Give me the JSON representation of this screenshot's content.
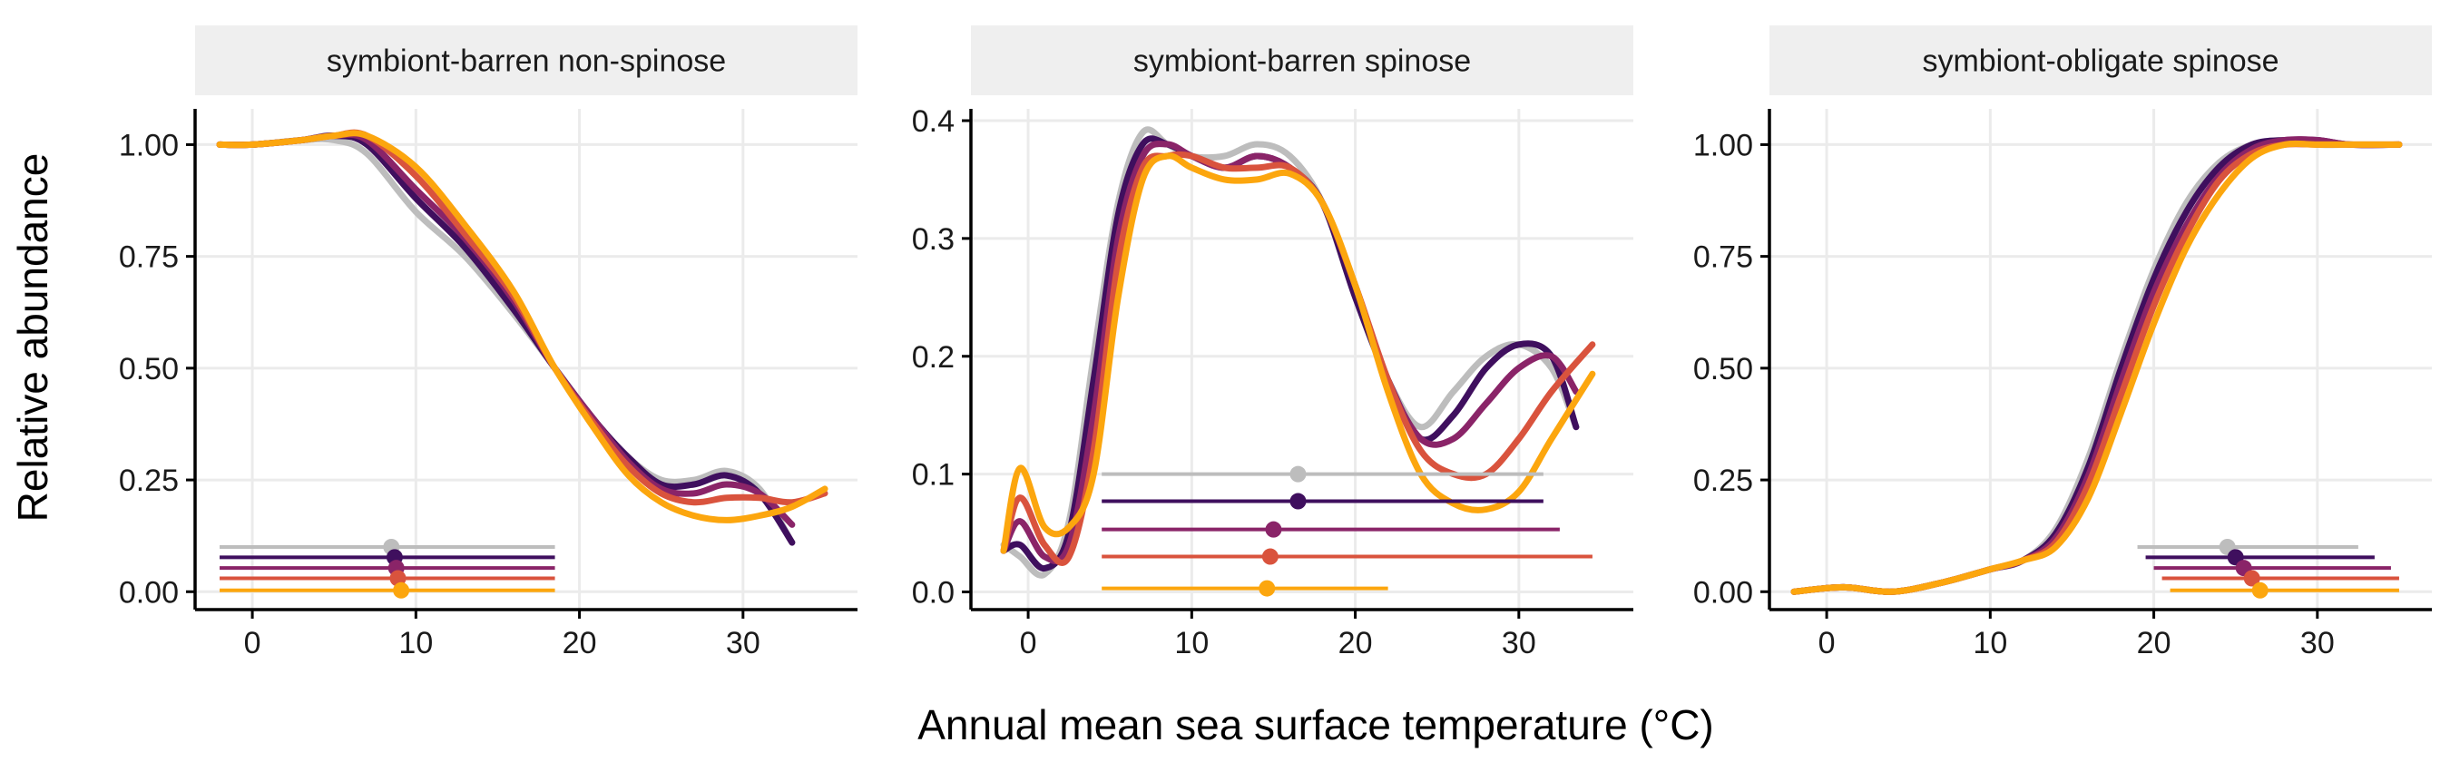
{
  "figure": {
    "ylabel": "Relative abundance",
    "xlabel": "Annual mean sea surface temperature (°C)"
  },
  "colors": {
    "strip_bg": "#efefef",
    "grid": "#ebebeb",
    "axis": "#000000",
    "series": [
      "#bdbdbd",
      "#3f0f5e",
      "#8a2468",
      "#d9533d",
      "#fca60e"
    ]
  },
  "chart_data": [
    {
      "type": "line",
      "title": "symbiont-barren non-spinose",
      "xlim": [
        -3.5,
        37
      ],
      "ylim": [
        -0.04,
        1.08
      ],
      "xticks": [
        0,
        10,
        20,
        30
      ],
      "yticks": [
        0,
        0.25,
        0.5,
        0.75,
        1.0
      ],
      "ytick_labels": [
        "0.00",
        "0.25",
        "0.50",
        "0.75",
        "1.00"
      ],
      "grid": true,
      "legend": "none",
      "series": [
        {
          "x": [
            -2,
            0,
            3,
            5,
            7,
            10,
            13,
            16,
            18.5,
            21,
            23,
            25,
            27,
            29,
            31,
            33
          ],
          "y": [
            1.0,
            1.0,
            1.01,
            1.01,
            0.98,
            0.85,
            0.75,
            0.62,
            0.5,
            0.38,
            0.3,
            0.25,
            0.25,
            0.27,
            0.23,
            0.11
          ]
        },
        {
          "x": [
            -2,
            0,
            3,
            5,
            7,
            10,
            13,
            16,
            18.5,
            21,
            23,
            25,
            27,
            29,
            31,
            33
          ],
          "y": [
            1.0,
            1.0,
            1.01,
            1.02,
            1.0,
            0.88,
            0.77,
            0.63,
            0.5,
            0.38,
            0.3,
            0.24,
            0.24,
            0.26,
            0.22,
            0.11
          ]
        },
        {
          "x": [
            -2,
            0,
            3,
            5,
            7,
            10,
            13,
            16,
            18.5,
            21,
            23,
            25,
            27,
            29,
            31,
            33
          ],
          "y": [
            1.0,
            1.0,
            1.01,
            1.02,
            1.01,
            0.9,
            0.79,
            0.65,
            0.5,
            0.38,
            0.29,
            0.23,
            0.22,
            0.24,
            0.22,
            0.15
          ]
        },
        {
          "x": [
            -2,
            0,
            3,
            5,
            7,
            10,
            13,
            16,
            18.5,
            21,
            23,
            25,
            27,
            29,
            31,
            33,
            35
          ],
          "y": [
            1.0,
            1.0,
            1.01,
            1.02,
            1.02,
            0.93,
            0.8,
            0.66,
            0.5,
            0.37,
            0.28,
            0.22,
            0.2,
            0.21,
            0.21,
            0.2,
            0.22
          ]
        },
        {
          "x": [
            -2,
            0,
            3,
            5,
            7,
            10,
            13,
            16,
            18.5,
            21,
            23,
            25,
            27,
            29,
            31,
            33,
            35
          ],
          "y": [
            1.0,
            1.0,
            1.01,
            1.02,
            1.02,
            0.95,
            0.82,
            0.67,
            0.5,
            0.36,
            0.26,
            0.2,
            0.17,
            0.16,
            0.17,
            0.19,
            0.23
          ]
        }
      ],
      "ranges": [
        {
          "xmin": -2,
          "xmax": 18.5,
          "point": 8.5,
          "y": 0.1
        },
        {
          "xmin": -2,
          "xmax": 18.5,
          "point": 8.7,
          "y": 0.077
        },
        {
          "xmin": -2,
          "xmax": 18.5,
          "point": 8.8,
          "y": 0.053
        },
        {
          "xmin": -2,
          "xmax": 18.5,
          "point": 8.9,
          "y": 0.03
        },
        {
          "xmin": -2,
          "xmax": 18.5,
          "point": 9.1,
          "y": 0.003
        }
      ]
    },
    {
      "type": "line",
      "title": "symbiont-barren spinose",
      "xlim": [
        -3.5,
        37
      ],
      "ylim": [
        -0.015,
        0.41
      ],
      "xticks": [
        0,
        10,
        20,
        30
      ],
      "yticks": [
        0,
        0.1,
        0.2,
        0.3,
        0.4
      ],
      "ytick_labels": [
        "0.0",
        "0.1",
        "0.2",
        "0.3",
        "0.4"
      ],
      "grid": true,
      "legend": "none",
      "series": [
        {
          "x": [
            -1.5,
            -0.5,
            1,
            2.5,
            4,
            5.5,
            7,
            8.5,
            10,
            12,
            14,
            16,
            18,
            20,
            22,
            24,
            26,
            28,
            30,
            32,
            33.5
          ],
          "y": [
            0.04,
            0.03,
            0.015,
            0.06,
            0.2,
            0.33,
            0.39,
            0.38,
            0.37,
            0.37,
            0.38,
            0.37,
            0.33,
            0.25,
            0.18,
            0.14,
            0.17,
            0.2,
            0.21,
            0.19,
            0.14
          ]
        },
        {
          "x": [
            -1.5,
            -0.5,
            1,
            2.5,
            4,
            5.5,
            7,
            8.5,
            10,
            12,
            14,
            16,
            18,
            20,
            22,
            24,
            26,
            28,
            30,
            32,
            33.5
          ],
          "y": [
            0.035,
            0.04,
            0.02,
            0.05,
            0.18,
            0.32,
            0.38,
            0.38,
            0.37,
            0.36,
            0.37,
            0.36,
            0.33,
            0.25,
            0.18,
            0.13,
            0.15,
            0.19,
            0.21,
            0.2,
            0.14
          ]
        },
        {
          "x": [
            -1.5,
            -0.5,
            1,
            2.5,
            4,
            5.5,
            7,
            8.5,
            10,
            12,
            14,
            16,
            18,
            20,
            22,
            24,
            26,
            28,
            30,
            32,
            33.5
          ],
          "y": [
            0.035,
            0.06,
            0.03,
            0.04,
            0.15,
            0.3,
            0.37,
            0.38,
            0.37,
            0.36,
            0.37,
            0.36,
            0.33,
            0.26,
            0.18,
            0.13,
            0.13,
            0.16,
            0.19,
            0.2,
            0.17
          ]
        },
        {
          "x": [
            -1.5,
            -0.5,
            1,
            2.5,
            4,
            5.5,
            7,
            8.5,
            10,
            12,
            14,
            16,
            18,
            20,
            22,
            24,
            26,
            28,
            30,
            32,
            34.5
          ],
          "y": [
            0.035,
            0.08,
            0.04,
            0.03,
            0.12,
            0.28,
            0.36,
            0.37,
            0.37,
            0.36,
            0.36,
            0.36,
            0.33,
            0.26,
            0.18,
            0.12,
            0.1,
            0.1,
            0.13,
            0.17,
            0.21
          ]
        },
        {
          "x": [
            -1.5,
            -0.5,
            1,
            2.5,
            4,
            5.5,
            7,
            8.5,
            10,
            12,
            14,
            16,
            18,
            20,
            22,
            24,
            26,
            28,
            30,
            32,
            34.5
          ],
          "y": [
            0.035,
            0.105,
            0.055,
            0.055,
            0.1,
            0.25,
            0.35,
            0.37,
            0.36,
            0.35,
            0.35,
            0.355,
            0.33,
            0.26,
            0.17,
            0.1,
            0.075,
            0.07,
            0.085,
            0.13,
            0.185
          ]
        }
      ],
      "ranges": [
        {
          "xmin": 4.5,
          "xmax": 31.5,
          "point": 16.5,
          "y": 0.1
        },
        {
          "xmin": 4.5,
          "xmax": 31.5,
          "point": 16.5,
          "y": 0.077
        },
        {
          "xmin": 4.5,
          "xmax": 32.5,
          "point": 15.0,
          "y": 0.053
        },
        {
          "xmin": 4.5,
          "xmax": 34.5,
          "point": 14.8,
          "y": 0.03
        },
        {
          "xmin": 4.5,
          "xmax": 22,
          "point": 14.6,
          "y": 0.003
        }
      ]
    },
    {
      "type": "line",
      "title": "symbiont-obligate spinose",
      "xlim": [
        -3.5,
        37
      ],
      "ylim": [
        -0.04,
        1.08
      ],
      "xticks": [
        0,
        10,
        20,
        30
      ],
      "yticks": [
        0,
        0.25,
        0.5,
        0.75,
        1.0
      ],
      "ytick_labels": [
        "0.00",
        "0.25",
        "0.50",
        "0.75",
        "1.00"
      ],
      "grid": true,
      "legend": "none",
      "series": [
        {
          "x": [
            -2,
            1,
            4,
            7,
            10,
            12,
            14,
            16,
            18,
            20,
            22,
            24,
            26,
            28,
            30,
            32,
            35
          ],
          "y": [
            0.0,
            0.01,
            0.0,
            0.02,
            0.05,
            0.07,
            0.14,
            0.3,
            0.52,
            0.72,
            0.87,
            0.96,
            1.0,
            1.01,
            1.0,
            1.0,
            1.0
          ]
        },
        {
          "x": [
            -2,
            1,
            4,
            7,
            10,
            12,
            14,
            16,
            18,
            20,
            22,
            24,
            26,
            28,
            30,
            32,
            35
          ],
          "y": [
            0.0,
            0.01,
            0.0,
            0.02,
            0.05,
            0.07,
            0.13,
            0.28,
            0.5,
            0.7,
            0.85,
            0.95,
            1.0,
            1.01,
            1.01,
            1.0,
            1.0
          ]
        },
        {
          "x": [
            -2,
            1,
            4,
            7,
            10,
            12,
            14,
            16,
            18,
            20,
            22,
            24,
            26,
            28,
            30,
            32,
            35
          ],
          "y": [
            0.0,
            0.01,
            0.0,
            0.02,
            0.05,
            0.07,
            0.12,
            0.26,
            0.47,
            0.67,
            0.82,
            0.93,
            0.99,
            1.01,
            1.01,
            1.0,
            1.0
          ]
        },
        {
          "x": [
            -2,
            1,
            4,
            7,
            10,
            12,
            14,
            16,
            18,
            20,
            22,
            24,
            26,
            28,
            30,
            32,
            35
          ],
          "y": [
            0.0,
            0.01,
            0.0,
            0.02,
            0.05,
            0.07,
            0.11,
            0.24,
            0.44,
            0.64,
            0.8,
            0.92,
            0.98,
            1.0,
            1.0,
            1.0,
            1.0
          ]
        },
        {
          "x": [
            -2,
            1,
            4,
            7,
            10,
            12,
            14,
            16,
            18,
            20,
            22,
            24,
            26,
            28,
            30,
            32,
            35
          ],
          "y": [
            0.0,
            0.01,
            0.0,
            0.02,
            0.05,
            0.07,
            0.1,
            0.21,
            0.4,
            0.6,
            0.77,
            0.89,
            0.97,
            1.0,
            1.0,
            1.0,
            1.0
          ]
        }
      ],
      "ranges": [
        {
          "xmin": 19,
          "xmax": 32.5,
          "point": 24.5,
          "y": 0.1
        },
        {
          "xmin": 19.5,
          "xmax": 33.5,
          "point": 25.0,
          "y": 0.077
        },
        {
          "xmin": 20,
          "xmax": 34.5,
          "point": 25.5,
          "y": 0.053
        },
        {
          "xmin": 20.5,
          "xmax": 35,
          "point": 26.0,
          "y": 0.03
        },
        {
          "xmin": 21,
          "xmax": 35,
          "point": 26.5,
          "y": 0.003
        }
      ]
    }
  ]
}
